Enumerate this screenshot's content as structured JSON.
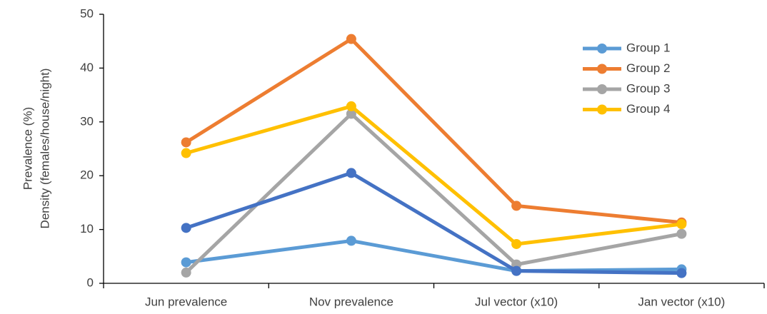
{
  "chart_data": {
    "type": "line",
    "y_label": [
      "Prevalence (%)",
      "Density (females/house/night)"
    ],
    "categories": [
      "Jun prevalence",
      "Nov prevalence",
      "Jul vector (x10)",
      "Jan vector (x10)"
    ],
    "series": [
      {
        "name": "Group 1",
        "color": "#5b9bd5",
        "values": [
          3.9,
          7.9,
          2.3,
          2.6
        ]
      },
      {
        "name": "Group 2",
        "color": "#ed7d31",
        "values": [
          26.2,
          45.4,
          14.4,
          11.3
        ]
      },
      {
        "name": "Group 3",
        "color": "#a5a5a5",
        "values": [
          2.0,
          31.5,
          3.5,
          9.2
        ]
      },
      {
        "name": "Group 4",
        "color": "#ffc000",
        "values": [
          24.2,
          32.9,
          7.3,
          11.0
        ]
      },
      {
        "color": "#4472c4",
        "values": [
          10.3,
          20.5,
          2.3,
          1.9
        ]
      }
    ],
    "ylim": [
      0,
      50
    ],
    "yticks": [
      0,
      10,
      20,
      30,
      40,
      50
    ],
    "grid": false,
    "legend": "top-right"
  }
}
